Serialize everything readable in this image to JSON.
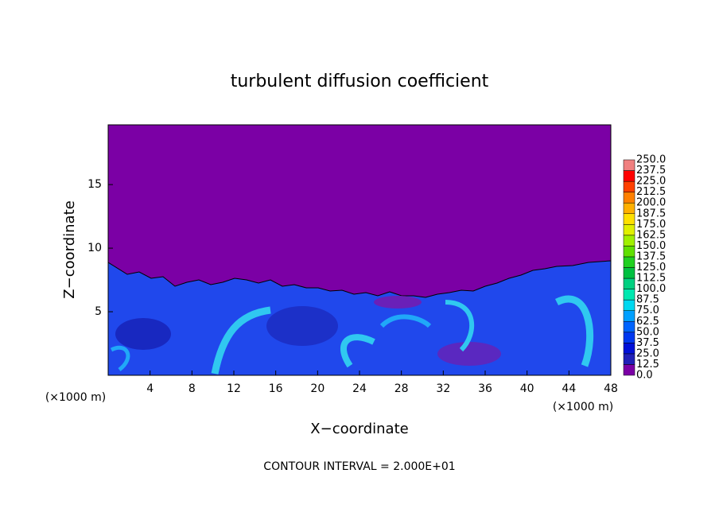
{
  "chart_data": {
    "type": "contour",
    "title": "turbulent diffusion coefficient",
    "x_label": "X−coordinate",
    "y_label": "Z−coordinate",
    "x_unit_left": "(×1000 m)",
    "x_unit_right": "(×1000 m)",
    "note": "CONTOUR INTERVAL = 2.000E+01",
    "xlim": [
      0,
      48
    ],
    "xticks": [
      4,
      8,
      12,
      16,
      20,
      24,
      28,
      32,
      36,
      40,
      44,
      48
    ],
    "ylim": [
      0,
      19.7
    ],
    "yticks": [
      5,
      10,
      15
    ],
    "background_color": "#7b00a5",
    "colorbar": {
      "levels": [
        {
          "value": 0,
          "label": "0.0"
        },
        12.5,
        {
          "value": 25,
          "label": "25.0"
        },
        37.5,
        {
          "value": 50,
          "label": "50.0"
        },
        62.5,
        {
          "value": 75,
          "label": "75.0"
        },
        87.5,
        {
          "value": 100,
          "label": "100.0"
        },
        112.5,
        {
          "value": 125,
          "label": "125.0"
        },
        137.5,
        {
          "value": 150,
          "label": "150.0"
        },
        162.5,
        {
          "value": 175,
          "label": "175.0"
        },
        187.5,
        {
          "value": 200,
          "label": "200.0"
        },
        212.5,
        {
          "value": 225,
          "label": "225.0"
        },
        237.5,
        {
          "value": 250,
          "label": "250.0"
        }
      ],
      "colors": [
        "#7b00a5",
        "#2020b8",
        "#0010d8",
        "#0038f0",
        "#0064ff",
        "#00a0ff",
        "#00d8f0",
        "#00e8b0",
        "#00d080",
        "#00c040",
        "#20d020",
        "#60e000",
        "#a0f000",
        "#e0f000",
        "#ffe000",
        "#ffb000",
        "#ff8000",
        "#ff4000",
        "#ff0000",
        "#f08080"
      ]
    }
  }
}
